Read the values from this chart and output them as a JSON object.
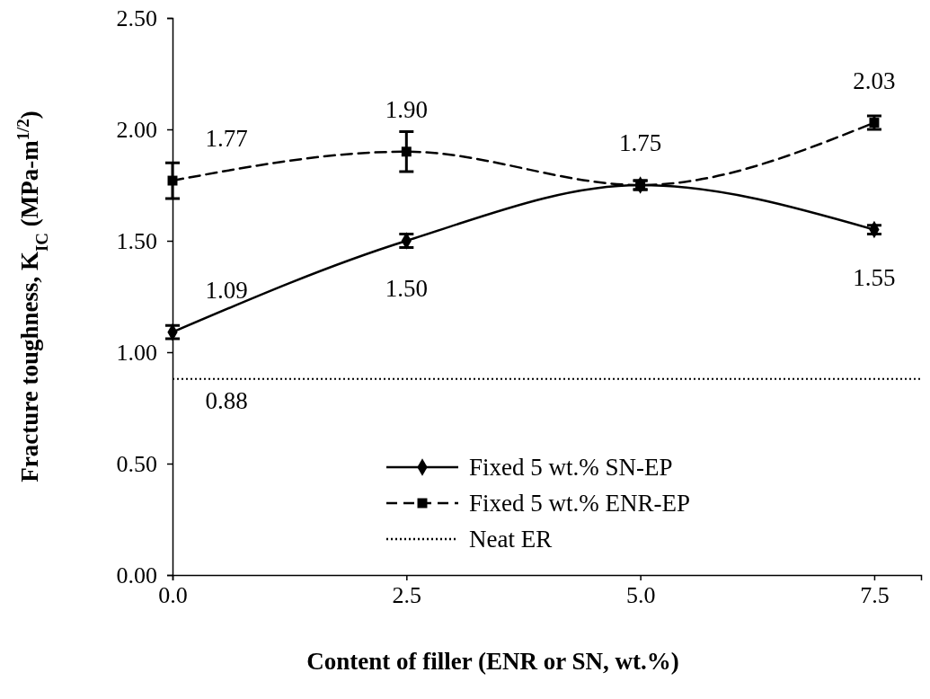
{
  "chart_data": {
    "type": "line",
    "xlabel": "Content of filler (ENR or SN, wt.%)",
    "ylabel": "Fracture toughness, K$_{IC}$ (MPa-m$^{1/2}$)",
    "x": [
      0,
      2.5,
      5,
      7.5
    ],
    "xlim": [
      0,
      8
    ],
    "xticks": [
      {
        "value": 0,
        "label": "0.0"
      },
      {
        "value": 2.5,
        "label": "2.5"
      },
      {
        "value": 5,
        "label": "5.0"
      },
      {
        "value": 7.5,
        "label": "7.5"
      }
    ],
    "ylim": [
      0,
      2.5
    ],
    "yticks": [
      {
        "value": 0,
        "label": "0.00"
      },
      {
        "value": 0.5,
        "label": "0.50"
      },
      {
        "value": 1,
        "label": "1.00"
      },
      {
        "value": 1.5,
        "label": "1.50"
      },
      {
        "value": 2,
        "label": "2.00"
      },
      {
        "value": 2.5,
        "label": "2.50"
      }
    ],
    "series": [
      {
        "name": "Fixed 5 wt.% SN-EP",
        "color": "#000000",
        "values": [
          1.09,
          1.5,
          1.75,
          1.55
        ],
        "errors": [
          0.03,
          0.03,
          0.02,
          0.02
        ],
        "marker": "diamond",
        "line_style": "solid",
        "value_labels": [
          "1.09",
          "1.50",
          null,
          "1.55"
        ]
      },
      {
        "name": "Fixed 5 wt.% ENR-EP",
        "color": "#000000",
        "values": [
          1.77,
          1.9,
          1.75,
          2.03
        ],
        "errors": [
          0.08,
          0.09,
          0.02,
          0.03
        ],
        "marker": "square",
        "line_style": "dashed",
        "value_labels": [
          "1.77",
          "1.90",
          "1.75",
          "2.03"
        ]
      }
    ],
    "ref_lines": [
      {
        "axis": "y",
        "value": 0.88,
        "label": "Neat ER",
        "color": "#000000",
        "line_style": "dotted"
      }
    ],
    "annotations": [
      {
        "text": "0.88",
        "x": 0,
        "y": 0.88
      }
    ],
    "grid": false,
    "legend": "bottom"
  }
}
